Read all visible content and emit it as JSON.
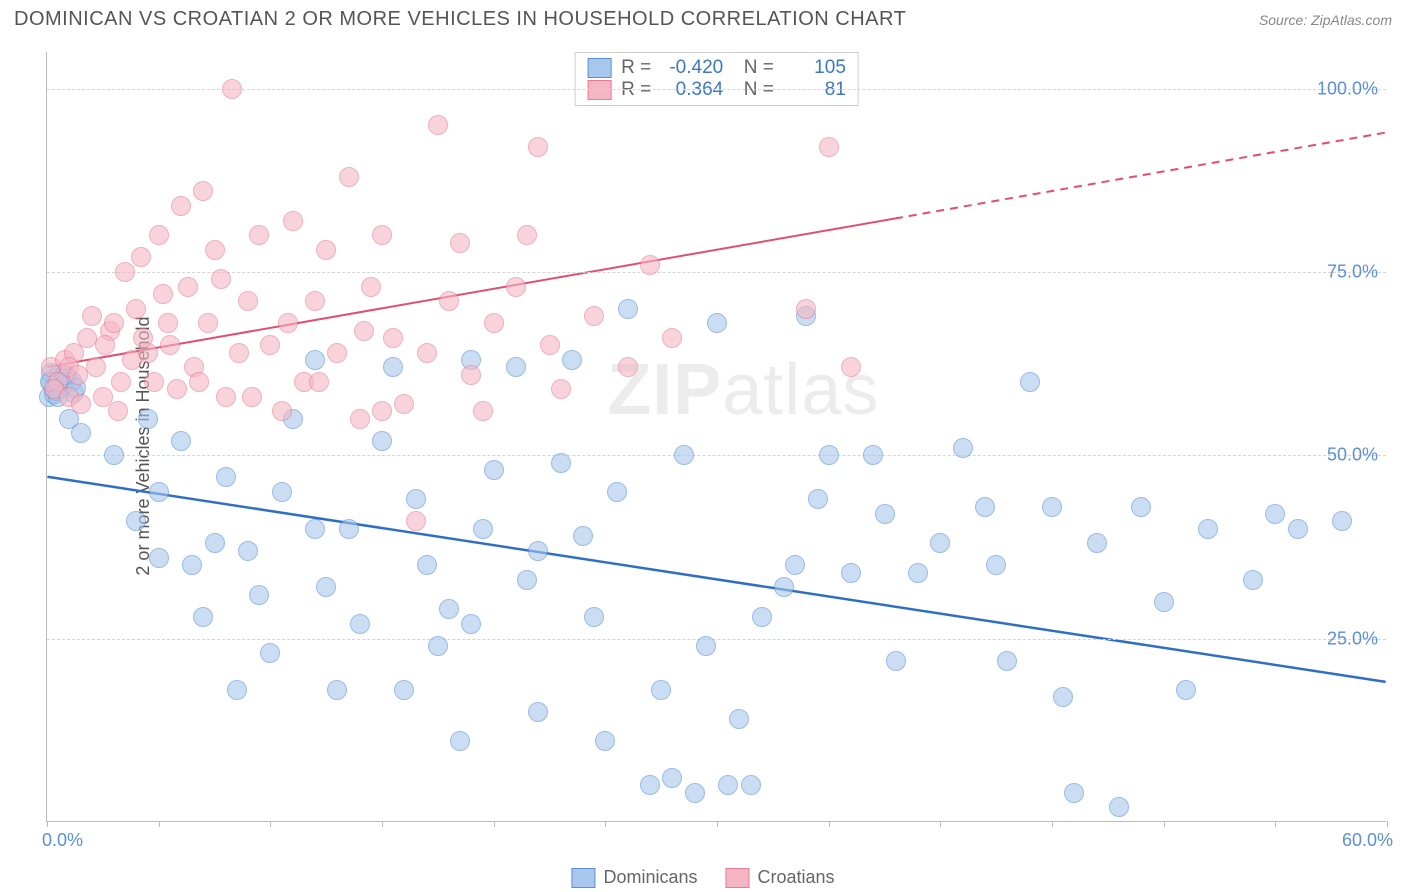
{
  "title": "DOMINICAN VS CROATIAN 2 OR MORE VEHICLES IN HOUSEHOLD CORRELATION CHART",
  "source": "Source: ZipAtlas.com",
  "watermark": "ZIPatlas",
  "chart": {
    "type": "scatter",
    "ylabel": "2 or more Vehicles in Household",
    "background_color": "#ffffff",
    "grid_color": "#d5d5d5",
    "xlim": [
      0,
      60
    ],
    "ylim": [
      0,
      105
    ],
    "ytick_step": 25,
    "yticks": [
      {
        "v": 25,
        "label": "25.0%"
      },
      {
        "v": 50,
        "label": "50.0%"
      },
      {
        "v": 75,
        "label": "75.0%"
      },
      {
        "v": 100,
        "label": "100.0%"
      }
    ],
    "xticks": [
      {
        "v": 0,
        "label": "0.0%"
      },
      {
        "v": 5,
        "label": ""
      },
      {
        "v": 10,
        "label": ""
      },
      {
        "v": 15,
        "label": ""
      },
      {
        "v": 20,
        "label": ""
      },
      {
        "v": 25,
        "label": ""
      },
      {
        "v": 30,
        "label": ""
      },
      {
        "v": 35,
        "label": ""
      },
      {
        "v": 40,
        "label": ""
      },
      {
        "v": 45,
        "label": ""
      },
      {
        "v": 50,
        "label": ""
      },
      {
        "v": 55,
        "label": ""
      },
      {
        "v": 60,
        "label": "60.0%"
      }
    ],
    "series": [
      {
        "name": "Dominicans",
        "marker_color": "#a7c7ec",
        "marker_border": "#5b8fd6",
        "marker_radius": 10,
        "trend": {
          "x1": 0,
          "y1": 47,
          "x2": 60,
          "y2": 19,
          "color": "#2e6fc4",
          "width": 2.5,
          "dash_from_x": null
        },
        "stats": {
          "R": "-0.420",
          "N": "105"
        },
        "points": [
          [
            0.2,
            60
          ],
          [
            0.5,
            61
          ],
          [
            0.3,
            59
          ],
          [
            0.1,
            58
          ],
          [
            0.8,
            60
          ],
          [
            0.6,
            59
          ],
          [
            0.4,
            60.5
          ],
          [
            0.2,
            61.2
          ],
          [
            1,
            55
          ],
          [
            1.2,
            58.5
          ],
          [
            1.5,
            53
          ],
          [
            3,
            50
          ],
          [
            4,
            41
          ],
          [
            5,
            36
          ],
          [
            5,
            45
          ],
          [
            6,
            52
          ],
          [
            6.5,
            35
          ],
          [
            7,
            28
          ],
          [
            8,
            47
          ],
          [
            8.5,
            18
          ],
          [
            9,
            37
          ],
          [
            9.5,
            31
          ],
          [
            10,
            23
          ],
          [
            10.5,
            45
          ],
          [
            11,
            55
          ],
          [
            12,
            63
          ],
          [
            12.5,
            32
          ],
          [
            13,
            18
          ],
          [
            13.5,
            40
          ],
          [
            14,
            27
          ],
          [
            15,
            52
          ],
          [
            15.5,
            62
          ],
          [
            16,
            18
          ],
          [
            16.5,
            44
          ],
          [
            17,
            35
          ],
          [
            17.5,
            24
          ],
          [
            18,
            29
          ],
          [
            18.5,
            11
          ],
          [
            19,
            63
          ],
          [
            19.5,
            40
          ],
          [
            20,
            48
          ],
          [
            21,
            62
          ],
          [
            21.5,
            33
          ],
          [
            22,
            15
          ],
          [
            23,
            49
          ],
          [
            23.5,
            63
          ],
          [
            24,
            39
          ],
          [
            24.5,
            28
          ],
          [
            25,
            11
          ],
          [
            25.5,
            45
          ],
          [
            26,
            70
          ],
          [
            27,
            5
          ],
          [
            27.5,
            18
          ],
          [
            28,
            6
          ],
          [
            28.5,
            50
          ],
          [
            29,
            4
          ],
          [
            29.5,
            24
          ],
          [
            30,
            68
          ],
          [
            30.5,
            5
          ],
          [
            31,
            14
          ],
          [
            31.5,
            5
          ],
          [
            32,
            28
          ],
          [
            33,
            32
          ],
          [
            33.5,
            35
          ],
          [
            34,
            69
          ],
          [
            34.5,
            44
          ],
          [
            35,
            50
          ],
          [
            36,
            34
          ],
          [
            37,
            50
          ],
          [
            37.5,
            42
          ],
          [
            38,
            22
          ],
          [
            39,
            34
          ],
          [
            40,
            38
          ],
          [
            41,
            51
          ],
          [
            42,
            43
          ],
          [
            42.5,
            35
          ],
          [
            43,
            22
          ],
          [
            44,
            60
          ],
          [
            45,
            43
          ],
          [
            45.5,
            17
          ],
          [
            46,
            4
          ],
          [
            47,
            38
          ],
          [
            48,
            2
          ],
          [
            49,
            43
          ],
          [
            50,
            30
          ],
          [
            51,
            18
          ],
          [
            52,
            40
          ],
          [
            54,
            33
          ],
          [
            55,
            42
          ],
          [
            56,
            40
          ],
          [
            58,
            41
          ],
          [
            0.7,
            59.5
          ],
          [
            0.9,
            60.8
          ],
          [
            1.1,
            60.2
          ],
          [
            0.3,
            58.3
          ],
          [
            0.4,
            58.8
          ],
          [
            1.3,
            59.2
          ],
          [
            0.15,
            60.0
          ],
          [
            0.5,
            58.0
          ],
          [
            0.8,
            61.0
          ],
          [
            4.5,
            55
          ],
          [
            7.5,
            38
          ],
          [
            12,
            40
          ],
          [
            19,
            27
          ],
          [
            22,
            37
          ]
        ]
      },
      {
        "name": "Croatians",
        "marker_color": "#f5b6c4",
        "marker_border": "#e77b95",
        "marker_radius": 10,
        "trend": {
          "x1": 0,
          "y1": 62,
          "x2": 60,
          "y2": 94,
          "color": "#e14e72",
          "width": 2,
          "dash_from_x": 38
        },
        "stats": {
          "R": "0.364",
          "N": "81"
        },
        "points": [
          [
            0.2,
            62
          ],
          [
            0.5,
            60
          ],
          [
            0.3,
            59
          ],
          [
            0.8,
            63
          ],
          [
            1,
            58
          ],
          [
            1.2,
            64
          ],
          [
            1.5,
            57
          ],
          [
            1.8,
            66
          ],
          [
            2,
            69
          ],
          [
            2.2,
            62
          ],
          [
            2.5,
            58
          ],
          [
            2.8,
            67
          ],
          [
            3,
            68
          ],
          [
            3.2,
            56
          ],
          [
            3.5,
            75
          ],
          [
            3.8,
            63
          ],
          [
            4,
            70
          ],
          [
            4.2,
            77
          ],
          [
            4.5,
            64
          ],
          [
            4.8,
            60
          ],
          [
            5,
            80
          ],
          [
            5.2,
            72
          ],
          [
            5.5,
            65
          ],
          [
            5.8,
            59
          ],
          [
            6,
            84
          ],
          [
            6.3,
            73
          ],
          [
            6.6,
            62
          ],
          [
            7,
            86
          ],
          [
            7.2,
            68
          ],
          [
            7.5,
            78
          ],
          [
            8,
            58
          ],
          [
            8.3,
            100
          ],
          [
            8.6,
            64
          ],
          [
            9,
            71
          ],
          [
            9.5,
            80
          ],
          [
            10,
            65
          ],
          [
            10.5,
            56
          ],
          [
            11,
            82
          ],
          [
            11.5,
            60
          ],
          [
            12,
            71
          ],
          [
            12.5,
            78
          ],
          [
            13,
            64
          ],
          [
            13.5,
            88
          ],
          [
            14,
            55
          ],
          [
            14.5,
            73
          ],
          [
            15,
            80
          ],
          [
            15.5,
            66
          ],
          [
            16,
            57
          ],
          [
            17,
            64
          ],
          [
            17.5,
            95
          ],
          [
            18,
            71
          ],
          [
            18.5,
            79
          ],
          [
            19,
            61
          ],
          [
            19.5,
            56
          ],
          [
            20,
            68
          ],
          [
            21,
            73
          ],
          [
            21.5,
            80
          ],
          [
            22,
            92
          ],
          [
            22.5,
            65
          ],
          [
            23,
            59
          ],
          [
            24.5,
            69
          ],
          [
            26,
            62
          ],
          [
            27,
            76
          ],
          [
            28,
            66
          ],
          [
            34,
            70
          ],
          [
            35,
            92
          ],
          [
            36,
            62
          ],
          [
            1,
            62
          ],
          [
            1.4,
            61
          ],
          [
            2.6,
            65
          ],
          [
            3.3,
            60
          ],
          [
            4.3,
            66
          ],
          [
            5.4,
            68
          ],
          [
            6.8,
            60
          ],
          [
            7.8,
            74
          ],
          [
            9.2,
            58
          ],
          [
            10.8,
            68
          ],
          [
            12.2,
            60
          ],
          [
            14.2,
            67
          ],
          [
            16.5,
            41
          ],
          [
            15,
            56
          ]
        ]
      }
    ],
    "legend": [
      {
        "label": "Dominicans",
        "swatch": "sw-blue"
      },
      {
        "label": "Croatians",
        "swatch": "sw-pink"
      }
    ]
  }
}
